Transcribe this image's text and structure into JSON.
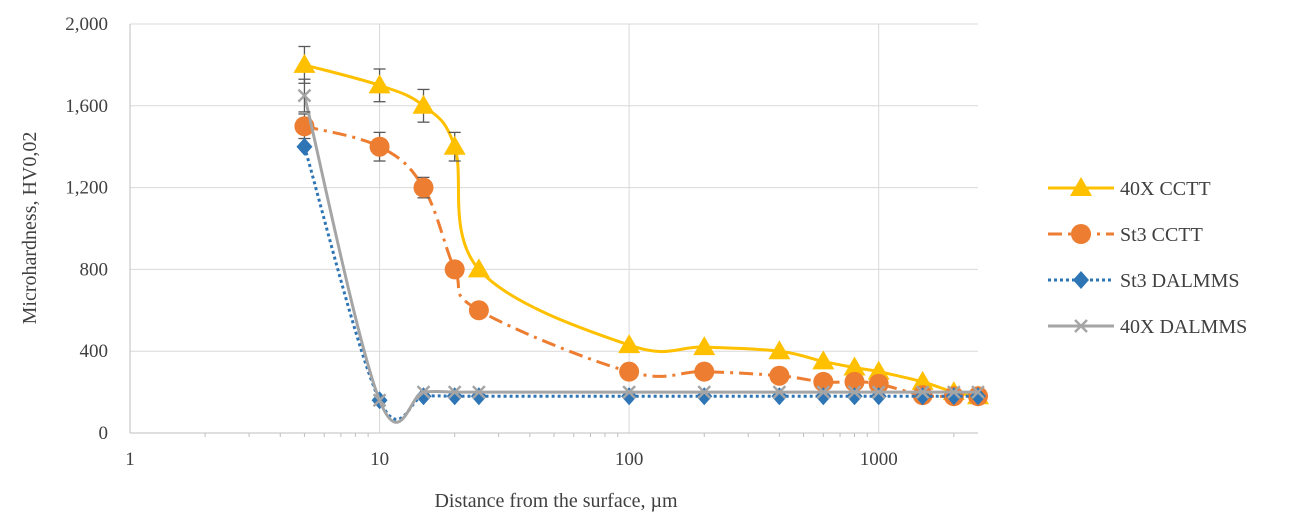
{
  "chart_data": {
    "type": "line",
    "title": "",
    "xlabel": "Distance from the surface, µm",
    "ylabel": "Microhardness, HV0,02",
    "xscale": "log",
    "xlim": [
      1,
      2500
    ],
    "ylim": [
      0,
      2000
    ],
    "x_ticks": [
      1,
      10,
      100,
      1000
    ],
    "x_tick_labels": [
      "1",
      "10",
      "100",
      "1000"
    ],
    "y_ticks": [
      0,
      400,
      800,
      1200,
      1600,
      2000
    ],
    "y_tick_labels": [
      "0",
      "400",
      "800",
      "1,200",
      "1,600",
      "2,000"
    ],
    "grid": "on",
    "legend_position": "right",
    "series": [
      {
        "name": "40X CCTT",
        "color": "#FFC000",
        "marker": "triangle",
        "line_style": "solid",
        "x": [
          5,
          10,
          15,
          20,
          25,
          100,
          200,
          400,
          600,
          800,
          1000,
          1500,
          2000,
          2500
        ],
        "y": [
          1800,
          1700,
          1600,
          1400,
          800,
          430,
          420,
          400,
          350,
          320,
          300,
          250,
          200,
          180
        ],
        "error": [
          90,
          80,
          80,
          70,
          0,
          0,
          0,
          0,
          0,
          0,
          0,
          0,
          0,
          0
        ]
      },
      {
        "name": "St3 CCTT",
        "color": "#ED7D31",
        "marker": "circle",
        "line_style": "dashdot",
        "x": [
          5,
          10,
          15,
          20,
          25,
          100,
          200,
          400,
          600,
          800,
          1000,
          1500,
          2000,
          2500
        ],
        "y": [
          1500,
          1400,
          1200,
          800,
          600,
          300,
          300,
          280,
          250,
          250,
          240,
          185,
          180,
          180
        ],
        "error": [
          60,
          70,
          50,
          0,
          0,
          0,
          0,
          0,
          0,
          0,
          0,
          0,
          0,
          0
        ]
      },
      {
        "name": "St3 DALMMS",
        "color": "#2E75B6",
        "marker": "diamond",
        "line_style": "dotted",
        "x": [
          5,
          10,
          15,
          20,
          25,
          100,
          200,
          400,
          600,
          800,
          1000,
          1500,
          2000,
          2500
        ],
        "y": [
          1400,
          160,
          180,
          180,
          180,
          180,
          180,
          180,
          180,
          180,
          180,
          180,
          180,
          180
        ],
        "error": [
          0,
          0,
          0,
          0,
          0,
          0,
          0,
          0,
          0,
          0,
          0,
          0,
          0,
          0
        ]
      },
      {
        "name": "40X DALMMS",
        "color": "#A5A5A5",
        "marker": "x",
        "line_style": "solid",
        "x": [
          5,
          10,
          15,
          20,
          25,
          100,
          200,
          400,
          600,
          800,
          1000,
          1500,
          2000,
          2500
        ],
        "y": [
          1650,
          160,
          200,
          200,
          200,
          200,
          200,
          200,
          200,
          200,
          200,
          200,
          200,
          200
        ],
        "error": [
          80,
          0,
          0,
          0,
          0,
          0,
          0,
          0,
          0,
          0,
          0,
          0,
          0,
          0
        ]
      }
    ]
  }
}
